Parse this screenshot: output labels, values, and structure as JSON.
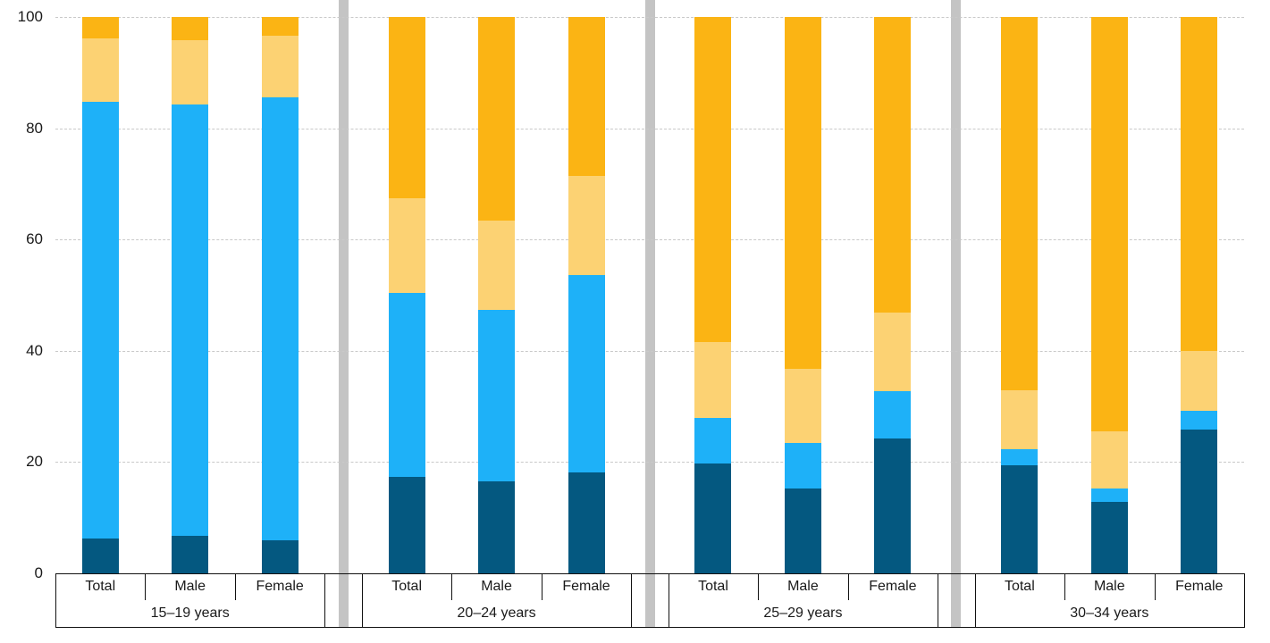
{
  "chart_data": {
    "type": "bar",
    "stacked": true,
    "title": "",
    "xlabel": "",
    "ylabel": "",
    "ylim": [
      0,
      100
    ],
    "yticks": [
      100,
      80,
      60,
      40,
      20,
      0
    ],
    "y_tick_labels": [
      "100",
      "80",
      "60",
      "40",
      "20",
      "0"
    ],
    "grid": "horizontal-dashed",
    "legend": "none",
    "segment_series": [
      {
        "name": "segment-1-dark-blue",
        "color": "#045880"
      },
      {
        "name": "segment-2-light-blue",
        "color": "#1EB1F8"
      },
      {
        "name": "segment-3-light-orange",
        "color": "#FCD273"
      },
      {
        "name": "segment-4-orange",
        "color": "#FBB414"
      }
    ],
    "groups": [
      {
        "label": "15–19 years",
        "bars": [
          {
            "label": "Total",
            "segments": [
              6.2,
              78.5,
              11.5,
              3.8
            ]
          },
          {
            "label": "Male",
            "segments": [
              6.7,
              77.6,
              11.5,
              4.2
            ]
          },
          {
            "label": "Female",
            "segments": [
              6.0,
              79.5,
              11.1,
              3.4
            ]
          }
        ]
      },
      {
        "label": "20–24 years",
        "bars": [
          {
            "label": "Total",
            "segments": [
              17.3,
              33.1,
              17.0,
              32.6
            ]
          },
          {
            "label": "Male",
            "segments": [
              16.5,
              30.8,
              16.1,
              36.6
            ]
          },
          {
            "label": "Female",
            "segments": [
              18.2,
              35.4,
              17.8,
              28.6
            ]
          }
        ]
      },
      {
        "label": "25–29 years",
        "bars": [
          {
            "label": "Total",
            "segments": [
              19.7,
              8.2,
              13.6,
              58.5
            ]
          },
          {
            "label": "Male",
            "segments": [
              15.2,
              8.2,
              13.3,
              63.3
            ]
          },
          {
            "label": "Female",
            "segments": [
              24.3,
              8.4,
              14.1,
              53.2
            ]
          }
        ]
      },
      {
        "label": "30–34 years",
        "bars": [
          {
            "label": "Total",
            "segments": [
              19.4,
              2.9,
              10.6,
              67.1
            ]
          },
          {
            "label": "Male",
            "segments": [
              12.9,
              2.4,
              10.3,
              74.4
            ]
          },
          {
            "label": "Female",
            "segments": [
              25.8,
              3.4,
              10.7,
              60.1
            ]
          }
        ]
      }
    ]
  },
  "colors": {
    "dark_blue": "#045880",
    "light_blue": "#1EB1F8",
    "light_orange": "#FCD273",
    "orange": "#FBB414",
    "gridline": "#C9C9C9",
    "group_separator": "#C4C4C4",
    "table_border": "#111111",
    "text": "#1A1A1A",
    "background": "#FFFFFF"
  }
}
